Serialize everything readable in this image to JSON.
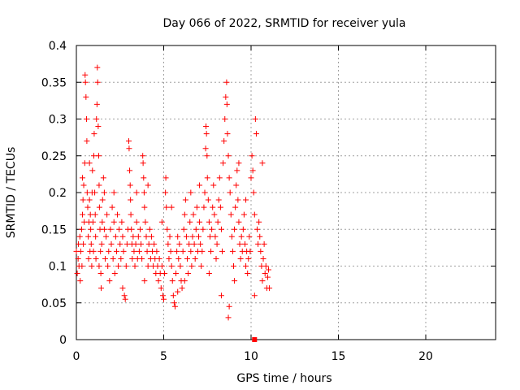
{
  "chart_data": {
    "type": "scatter",
    "title": "Day 066 of 2022, SRMTID for receiver yula",
    "xlabel": "GPS time / hours",
    "ylabel": "SRMTID / TECUs",
    "xlim": [
      0,
      24
    ],
    "ylim": [
      0,
      0.4
    ],
    "x_ticks": [
      0,
      5,
      10,
      15,
      20
    ],
    "x_tick_labels": [
      "0",
      "5",
      "10",
      "15",
      "20"
    ],
    "y_ticks": [
      0,
      0.05,
      0.1,
      0.15,
      0.2,
      0.25,
      0.3,
      0.35,
      0.4
    ],
    "y_tick_labels": [
      "0",
      "0.05",
      "0.1",
      "0.15",
      "0.2",
      "0.25",
      "0.3",
      "0.35",
      "0.4"
    ],
    "grid": true,
    "legend": "none",
    "marker": "plus",
    "color": "#ff0000",
    "series": [
      {
        "points": [
          [
            0.0,
            0.12
          ],
          [
            0.05,
            0.09
          ],
          [
            0.1,
            0.11
          ],
          [
            0.12,
            0.13
          ],
          [
            0.15,
            0.1
          ],
          [
            0.2,
            0.14
          ],
          [
            0.22,
            0.08
          ],
          [
            0.25,
            0.12
          ],
          [
            0.3,
            0.15
          ],
          [
            0.32,
            0.1
          ],
          [
            0.35,
            0.17
          ],
          [
            0.38,
            0.19
          ],
          [
            0.4,
            0.13
          ],
          [
            0.42,
            0.21
          ],
          [
            0.45,
            0.16
          ],
          [
            0.48,
            0.24
          ],
          [
            0.5,
            0.36
          ],
          [
            0.52,
            0.35
          ],
          [
            0.55,
            0.33
          ],
          [
            0.58,
            0.3
          ],
          [
            0.6,
            0.27
          ],
          [
            0.62,
            0.2
          ],
          [
            0.65,
            0.18
          ],
          [
            0.68,
            0.14
          ],
          [
            0.7,
            0.11
          ],
          [
            0.72,
            0.16
          ],
          [
            0.75,
            0.19
          ],
          [
            0.78,
            0.12
          ],
          [
            0.8,
            0.17
          ],
          [
            0.82,
            0.15
          ],
          [
            0.85,
            0.13
          ],
          [
            0.88,
            0.1
          ],
          [
            0.9,
            0.2
          ],
          [
            0.92,
            0.23
          ],
          [
            0.95,
            0.16
          ],
          [
            0.98,
            0.12
          ],
          [
            1.0,
            0.25
          ],
          [
            1.02,
            0.28
          ],
          [
            1.05,
            0.2
          ],
          [
            1.08,
            0.17
          ],
          [
            1.1,
            0.14
          ],
          [
            1.12,
            0.11
          ],
          [
            1.15,
            0.3
          ],
          [
            1.18,
            0.32
          ],
          [
            1.2,
            0.37
          ],
          [
            1.22,
            0.35
          ],
          [
            1.25,
            0.29
          ],
          [
            1.28,
            0.25
          ],
          [
            1.3,
            0.21
          ],
          [
            1.32,
            0.18
          ],
          [
            1.35,
            0.15
          ],
          [
            1.38,
            0.12
          ],
          [
            1.4,
            0.09
          ],
          [
            1.42,
            0.07
          ],
          [
            1.45,
            0.13
          ],
          [
            1.48,
            0.16
          ],
          [
            1.5,
            0.19
          ],
          [
            1.55,
            0.22
          ],
          [
            1.6,
            0.15
          ],
          [
            1.65,
            0.11
          ],
          [
            1.7,
            0.14
          ],
          [
            1.75,
            0.17
          ],
          [
            1.8,
            0.1
          ],
          [
            1.85,
            0.12
          ],
          [
            1.9,
            0.08
          ],
          [
            1.95,
            0.15
          ],
          [
            2.0,
            0.13
          ],
          [
            2.05,
            0.18
          ],
          [
            2.1,
            0.11
          ],
          [
            2.15,
            0.16
          ],
          [
            2.2,
            0.09
          ],
          [
            2.25,
            0.14
          ],
          [
            2.3,
            0.12
          ],
          [
            2.35,
            0.17
          ],
          [
            2.4,
            0.1
          ],
          [
            2.45,
            0.15
          ],
          [
            2.5,
            0.13
          ],
          [
            2.55,
            0.11
          ],
          [
            2.6,
            0.16
          ],
          [
            2.65,
            0.14
          ],
          [
            2.7,
            0.12
          ],
          [
            2.75,
            0.06
          ],
          [
            2.8,
            0.055
          ],
          [
            2.85,
            0.1
          ],
          [
            2.9,
            0.13
          ],
          [
            2.95,
            0.15
          ],
          [
            3.0,
            0.27
          ],
          [
            3.02,
            0.26
          ],
          [
            3.05,
            0.23
          ],
          [
            3.08,
            0.21
          ],
          [
            3.1,
            0.19
          ],
          [
            3.12,
            0.17
          ],
          [
            3.15,
            0.15
          ],
          [
            3.18,
            0.13
          ],
          [
            3.2,
            0.11
          ],
          [
            3.25,
            0.14
          ],
          [
            3.3,
            0.12
          ],
          [
            3.35,
            0.1
          ],
          [
            3.4,
            0.13
          ],
          [
            3.45,
            0.16
          ],
          [
            3.5,
            0.11
          ],
          [
            3.55,
            0.14
          ],
          [
            3.6,
            0.12
          ],
          [
            3.65,
            0.15
          ],
          [
            3.7,
            0.13
          ],
          [
            3.75,
            0.11
          ],
          [
            3.8,
            0.25
          ],
          [
            3.82,
            0.24
          ],
          [
            3.85,
            0.22
          ],
          [
            3.88,
            0.2
          ],
          [
            3.9,
            0.18
          ],
          [
            3.95,
            0.16
          ],
          [
            4.0,
            0.14
          ],
          [
            4.05,
            0.12
          ],
          [
            4.1,
            0.1
          ],
          [
            4.15,
            0.13
          ],
          [
            4.2,
            0.15
          ],
          [
            4.25,
            0.11
          ],
          [
            4.3,
            0.14
          ],
          [
            4.35,
            0.12
          ],
          [
            4.4,
            0.1
          ],
          [
            4.45,
            0.13
          ],
          [
            4.5,
            0.11
          ],
          [
            4.55,
            0.09
          ],
          [
            4.6,
            0.12
          ],
          [
            4.65,
            0.1
          ],
          [
            4.7,
            0.08
          ],
          [
            4.75,
            0.11
          ],
          [
            4.8,
            0.09
          ],
          [
            4.85,
            0.07
          ],
          [
            4.9,
            0.1
          ],
          [
            4.95,
            0.06
          ],
          [
            5.0,
            0.055
          ],
          [
            5.05,
            0.09
          ],
          [
            5.1,
            0.2
          ],
          [
            5.12,
            0.22
          ],
          [
            5.15,
            0.18
          ],
          [
            5.2,
            0.15
          ],
          [
            5.25,
            0.13
          ],
          [
            5.3,
            0.11
          ],
          [
            5.35,
            0.14
          ],
          [
            5.4,
            0.12
          ],
          [
            5.45,
            0.1
          ],
          [
            5.5,
            0.08
          ],
          [
            5.55,
            0.06
          ],
          [
            5.6,
            0.05
          ],
          [
            5.65,
            0.045
          ],
          [
            5.7,
            0.09
          ],
          [
            5.75,
            0.12
          ],
          [
            5.8,
            0.14
          ],
          [
            5.85,
            0.11
          ],
          [
            5.9,
            0.13
          ],
          [
            5.95,
            0.1
          ],
          [
            6.0,
            0.08
          ],
          [
            6.05,
            0.07
          ],
          [
            6.1,
            0.12
          ],
          [
            6.15,
            0.15
          ],
          [
            6.2,
            0.17
          ],
          [
            6.25,
            0.19
          ],
          [
            6.3,
            0.14
          ],
          [
            6.35,
            0.11
          ],
          [
            6.4,
            0.09
          ],
          [
            6.45,
            0.13
          ],
          [
            6.5,
            0.16
          ],
          [
            6.55,
            0.12
          ],
          [
            6.6,
            0.1
          ],
          [
            6.65,
            0.14
          ],
          [
            6.7,
            0.17
          ],
          [
            6.75,
            0.13
          ],
          [
            6.8,
            0.11
          ],
          [
            6.85,
            0.15
          ],
          [
            6.9,
            0.18
          ],
          [
            6.95,
            0.12
          ],
          [
            7.0,
            0.14
          ],
          [
            7.05,
            0.16
          ],
          [
            7.1,
            0.13
          ],
          [
            7.15,
            0.1
          ],
          [
            7.2,
            0.12
          ],
          [
            7.25,
            0.15
          ],
          [
            7.3,
            0.18
          ],
          [
            7.35,
            0.2
          ],
          [
            7.4,
            0.26
          ],
          [
            7.42,
            0.29
          ],
          [
            7.45,
            0.28
          ],
          [
            7.48,
            0.25
          ],
          [
            7.5,
            0.22
          ],
          [
            7.55,
            0.19
          ],
          [
            7.6,
            0.16
          ],
          [
            7.65,
            0.14
          ],
          [
            7.7,
            0.12
          ],
          [
            7.75,
            0.15
          ],
          [
            7.8,
            0.18
          ],
          [
            7.85,
            0.21
          ],
          [
            7.9,
            0.17
          ],
          [
            7.95,
            0.14
          ],
          [
            8.0,
            0.11
          ],
          [
            8.05,
            0.13
          ],
          [
            8.1,
            0.16
          ],
          [
            8.15,
            0.19
          ],
          [
            8.2,
            0.22
          ],
          [
            8.25,
            0.18
          ],
          [
            8.3,
            0.15
          ],
          [
            8.35,
            0.12
          ],
          [
            8.4,
            0.24
          ],
          [
            8.45,
            0.27
          ],
          [
            8.5,
            0.3
          ],
          [
            8.55,
            0.33
          ],
          [
            8.6,
            0.35
          ],
          [
            8.62,
            0.32
          ],
          [
            8.65,
            0.28
          ],
          [
            8.7,
            0.25
          ],
          [
            8.75,
            0.22
          ],
          [
            8.8,
            0.2
          ],
          [
            8.85,
            0.17
          ],
          [
            8.9,
            0.14
          ],
          [
            8.95,
            0.12
          ],
          [
            9.0,
            0.1
          ],
          [
            9.05,
            0.15
          ],
          [
            9.1,
            0.18
          ],
          [
            9.15,
            0.21
          ],
          [
            9.2,
            0.23
          ],
          [
            9.25,
            0.19
          ],
          [
            9.3,
            0.16
          ],
          [
            9.35,
            0.13
          ],
          [
            9.4,
            0.11
          ],
          [
            9.45,
            0.14
          ],
          [
            9.5,
            0.12
          ],
          [
            9.55,
            0.15
          ],
          [
            9.6,
            0.17
          ],
          [
            9.65,
            0.13
          ],
          [
            9.7,
            0.1
          ],
          [
            9.75,
            0.12
          ],
          [
            9.8,
            0.09
          ],
          [
            9.85,
            0.11
          ],
          [
            9.9,
            0.14
          ],
          [
            9.95,
            0.12
          ],
          [
            10.0,
            0.22
          ],
          [
            10.05,
            0.25
          ],
          [
            10.1,
            0.23
          ],
          [
            10.15,
            0.2
          ],
          [
            10.2,
            0.17
          ],
          [
            10.25,
            0.3
          ],
          [
            10.3,
            0.28
          ],
          [
            10.35,
            0.15
          ],
          [
            10.4,
            0.13
          ],
          [
            10.45,
            0.16
          ],
          [
            10.5,
            0.14
          ],
          [
            10.55,
            0.12
          ],
          [
            10.6,
            0.1
          ],
          [
            10.65,
            0.08
          ],
          [
            10.7,
            0.11
          ],
          [
            10.75,
            0.13
          ],
          [
            10.8,
            0.09
          ],
          [
            10.85,
            0.1
          ],
          [
            10.9,
            0.07
          ],
          [
            10.95,
            0.085
          ],
          [
            11.0,
            0.095
          ],
          [
            11.05,
            0.07
          ],
          [
            8.7,
            0.03
          ],
          [
            8.75,
            0.045
          ],
          [
            2.65,
            0.07
          ],
          [
            4.1,
            0.21
          ],
          [
            6.55,
            0.2
          ],
          [
            9.3,
            0.24
          ],
          [
            1.6,
            0.2
          ],
          [
            0.35,
            0.22
          ],
          [
            5.45,
            0.18
          ],
          [
            7.05,
            0.21
          ],
          [
            3.45,
            0.2
          ],
          [
            0.75,
            0.24
          ],
          [
            9.7,
            0.19
          ],
          [
            10.65,
            0.24
          ],
          [
            2.15,
            0.2
          ],
          [
            4.9,
            0.16
          ],
          [
            6.2,
            0.08
          ],
          [
            7.6,
            0.09
          ],
          [
            8.3,
            0.06
          ],
          [
            9.05,
            0.08
          ],
          [
            10.2,
            0.06
          ],
          [
            5.8,
            0.065
          ],
          [
            3.9,
            0.08
          ],
          [
            1.3,
            0.1
          ]
        ]
      }
    ],
    "special_points": [
      {
        "x": 10.2,
        "y": 0.0,
        "marker": "square"
      }
    ]
  }
}
